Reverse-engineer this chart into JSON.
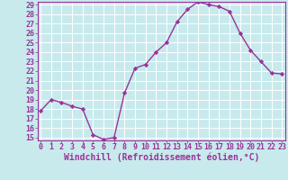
{
  "x": [
    0,
    1,
    2,
    3,
    4,
    5,
    6,
    7,
    8,
    9,
    10,
    11,
    12,
    13,
    14,
    15,
    16,
    17,
    18,
    19,
    20,
    21,
    22,
    23
  ],
  "y": [
    17.8,
    19.0,
    18.7,
    18.3,
    18.0,
    15.3,
    14.8,
    15.0,
    19.7,
    22.3,
    22.7,
    24.0,
    25.0,
    27.2,
    28.5,
    29.3,
    29.0,
    28.8,
    28.3,
    26.0,
    24.2,
    23.0,
    21.8,
    21.7
  ],
  "line_color": "#993399",
  "marker": "D",
  "marker_size": 2.2,
  "bg_color": "#c8eaed",
  "grid_color": "#ffffff",
  "xlabel": "Windchill (Refroidissement éolien,°C)",
  "ylim_min": 15,
  "ylim_max": 29,
  "xlim_min": 0,
  "xlim_max": 23,
  "yticks": [
    15,
    16,
    17,
    18,
    19,
    20,
    21,
    22,
    23,
    24,
    25,
    26,
    27,
    28,
    29
  ],
  "xticks": [
    0,
    1,
    2,
    3,
    4,
    5,
    6,
    7,
    8,
    9,
    10,
    11,
    12,
    13,
    14,
    15,
    16,
    17,
    18,
    19,
    20,
    21,
    22,
    23
  ],
  "tick_color": "#993399",
  "xlabel_fontsize": 7.0,
  "tick_fontsize": 6.0,
  "linewidth": 1.0
}
